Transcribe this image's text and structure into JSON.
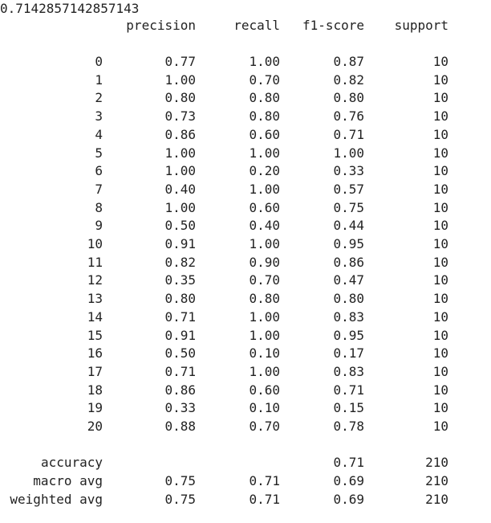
{
  "accuracy_value": "0.7142857142857143",
  "headers": {
    "precision": "precision",
    "recall": "recall",
    "f1": "f1-score",
    "support": "support"
  },
  "rows": [
    {
      "label": "0",
      "precision": "0.77",
      "recall": "1.00",
      "f1": "0.87",
      "support": "10"
    },
    {
      "label": "1",
      "precision": "1.00",
      "recall": "0.70",
      "f1": "0.82",
      "support": "10"
    },
    {
      "label": "2",
      "precision": "0.80",
      "recall": "0.80",
      "f1": "0.80",
      "support": "10"
    },
    {
      "label": "3",
      "precision": "0.73",
      "recall": "0.80",
      "f1": "0.76",
      "support": "10"
    },
    {
      "label": "4",
      "precision": "0.86",
      "recall": "0.60",
      "f1": "0.71",
      "support": "10"
    },
    {
      "label": "5",
      "precision": "1.00",
      "recall": "1.00",
      "f1": "1.00",
      "support": "10"
    },
    {
      "label": "6",
      "precision": "1.00",
      "recall": "0.20",
      "f1": "0.33",
      "support": "10"
    },
    {
      "label": "7",
      "precision": "0.40",
      "recall": "1.00",
      "f1": "0.57",
      "support": "10"
    },
    {
      "label": "8",
      "precision": "1.00",
      "recall": "0.60",
      "f1": "0.75",
      "support": "10"
    },
    {
      "label": "9",
      "precision": "0.50",
      "recall": "0.40",
      "f1": "0.44",
      "support": "10"
    },
    {
      "label": "10",
      "precision": "0.91",
      "recall": "1.00",
      "f1": "0.95",
      "support": "10"
    },
    {
      "label": "11",
      "precision": "0.82",
      "recall": "0.90",
      "f1": "0.86",
      "support": "10"
    },
    {
      "label": "12",
      "precision": "0.35",
      "recall": "0.70",
      "f1": "0.47",
      "support": "10"
    },
    {
      "label": "13",
      "precision": "0.80",
      "recall": "0.80",
      "f1": "0.80",
      "support": "10"
    },
    {
      "label": "14",
      "precision": "0.71",
      "recall": "1.00",
      "f1": "0.83",
      "support": "10"
    },
    {
      "label": "15",
      "precision": "0.91",
      "recall": "1.00",
      "f1": "0.95",
      "support": "10"
    },
    {
      "label": "16",
      "precision": "0.50",
      "recall": "0.10",
      "f1": "0.17",
      "support": "10"
    },
    {
      "label": "17",
      "precision": "0.71",
      "recall": "1.00",
      "f1": "0.83",
      "support": "10"
    },
    {
      "label": "18",
      "precision": "0.86",
      "recall": "0.60",
      "f1": "0.71",
      "support": "10"
    },
    {
      "label": "19",
      "precision": "0.33",
      "recall": "0.10",
      "f1": "0.15",
      "support": "10"
    },
    {
      "label": "20",
      "precision": "0.88",
      "recall": "0.70",
      "f1": "0.78",
      "support": "10"
    }
  ],
  "summary": [
    {
      "label": "accuracy",
      "precision": "",
      "recall": "",
      "f1": "0.71",
      "support": "210"
    },
    {
      "label": "macro avg",
      "precision": "0.75",
      "recall": "0.71",
      "f1": "0.69",
      "support": "210"
    },
    {
      "label": "weighted avg",
      "precision": "0.75",
      "recall": "0.71",
      "f1": "0.69",
      "support": "210"
    }
  ]
}
